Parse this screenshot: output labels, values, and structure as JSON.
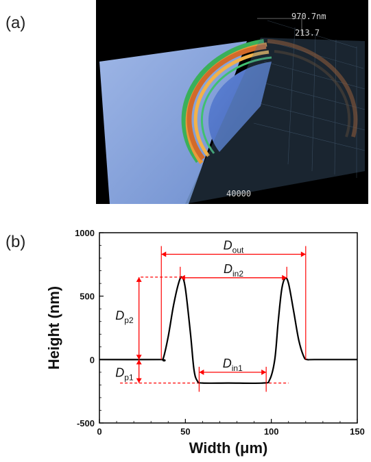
{
  "panels": {
    "a_label": "(a)",
    "b_label": "(b)"
  },
  "panel_a": {
    "readout_top": "970.7nm",
    "readout_mid": "213.7",
    "axis_value": "40000"
  },
  "colors": {
    "curve": "#000000",
    "annotation": "#ff0000",
    "background": "#ffffff",
    "surface_dark": "#000000"
  },
  "chart_data": {
    "type": "line",
    "title": "",
    "xlabel": "Width (μm)",
    "ylabel": "Height (nm)",
    "xlim": [
      0,
      150
    ],
    "ylim": [
      -500,
      1000
    ],
    "xticks": [
      "0",
      "50",
      "100",
      "150"
    ],
    "yticks": [
      "-500",
      "0",
      "500",
      "1000"
    ],
    "grid": false,
    "series": [
      {
        "x": [
          0,
          35,
          37,
          40,
          43,
          46,
          48,
          50,
          53,
          55,
          57,
          60,
          75,
          95,
          99,
          102,
          104,
          106,
          108,
          110,
          113,
          116,
          119,
          121,
          125,
          150
        ],
        "y": [
          0,
          0,
          5,
          180,
          420,
          600,
          650,
          560,
          200,
          -80,
          -170,
          -185,
          -185,
          -185,
          -160,
          0,
          300,
          550,
          640,
          600,
          380,
          150,
          20,
          0,
          0,
          0
        ]
      }
    ],
    "annotations": {
      "D_out": {
        "label": "D",
        "sub": "out",
        "x1": 36,
        "x2": 120,
        "y": 830
      },
      "D_in2": {
        "label": "D",
        "sub": "in2",
        "x1": 47,
        "x2": 109,
        "y": 645
      },
      "D_in1": {
        "label": "D",
        "sub": "in1",
        "x1": 58,
        "x2": 97,
        "y": -100
      },
      "D_p2": {
        "label": "D",
        "sub": "p2",
        "x": 23,
        "y1": 0,
        "y2": 650
      },
      "D_p1": {
        "label": "D",
        "sub": "p1",
        "x": 23,
        "y1": -185,
        "y2": 0
      },
      "ref_lines": {
        "peak": {
          "y": 650,
          "x1": 24,
          "x2": 48
        },
        "trough": {
          "y": -185,
          "x1": 12,
          "x2": 110
        },
        "zero": {
          "y": 0,
          "x1": 23,
          "x2": 36
        }
      }
    }
  }
}
